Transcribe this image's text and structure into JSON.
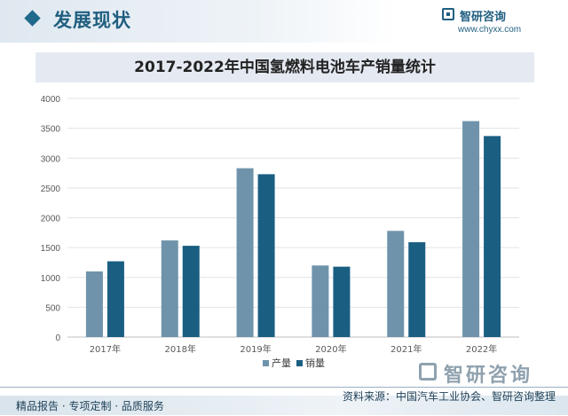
{
  "header": {
    "section_title": "发展现状",
    "brand_name": "智研咨询",
    "brand_url": "www.chyxx.com"
  },
  "chart_data": {
    "type": "bar",
    "title": "2017-2022年中国氢燃料电池车产销量统计",
    "categories": [
      "2017年",
      "2018年",
      "2019年",
      "2020年",
      "2021年",
      "2022年"
    ],
    "series": [
      {
        "name": "产量",
        "color": "#6f93aa",
        "values": [
          1100,
          1620,
          2830,
          1200,
          1780,
          3620
        ]
      },
      {
        "name": "销量",
        "color": "#1a5e82",
        "values": [
          1270,
          1530,
          2730,
          1180,
          1590,
          3370
        ]
      }
    ],
    "ylim": [
      0,
      4000
    ],
    "yticks": [
      "0",
      "500",
      "1000",
      "1500",
      "2000",
      "2500",
      "3000",
      "3500",
      "4000"
    ],
    "grid": true,
    "legend": "bottom"
  },
  "watermark": {
    "brand_name": "智研咨询"
  },
  "footer": {
    "left_text": "精品报告 · 专项定制 · 品质服务",
    "source_text": "资料来源：中国汽车工业协会、智研咨询整理"
  }
}
